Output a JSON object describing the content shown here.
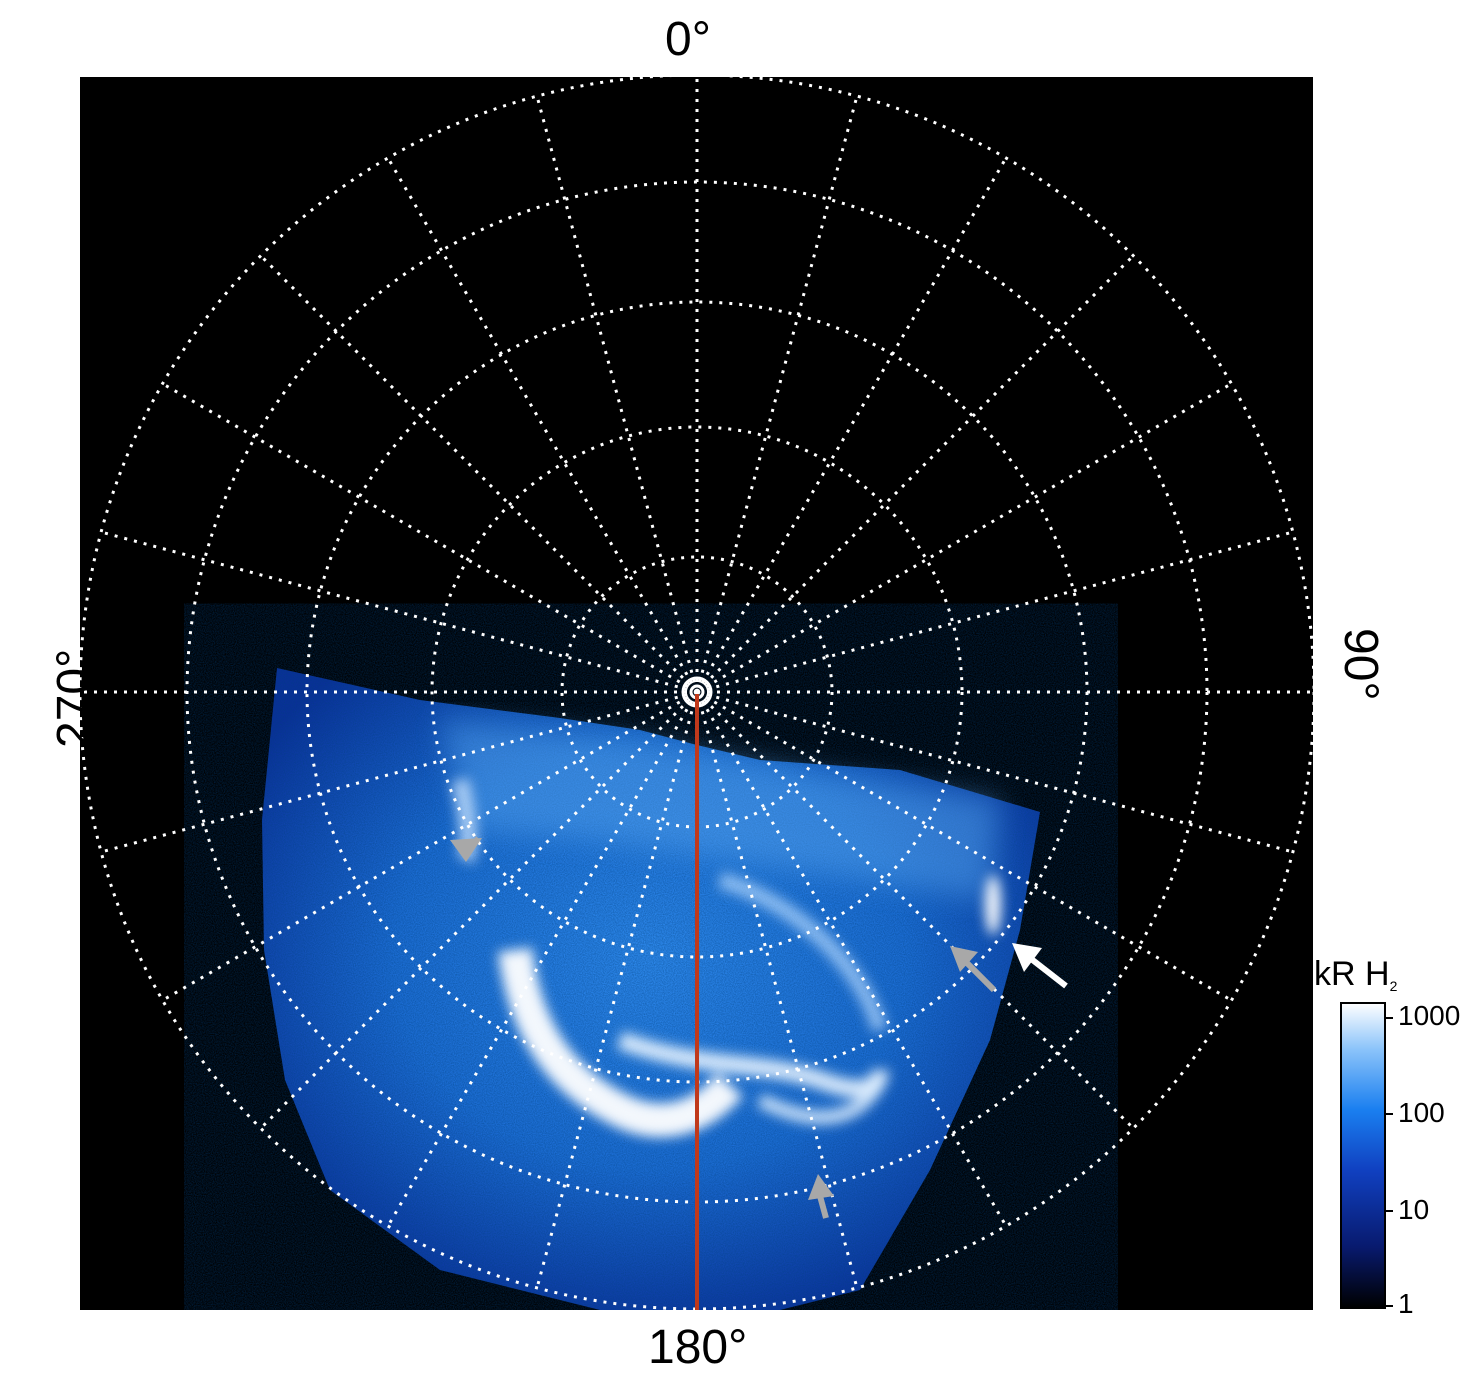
{
  "labels": {
    "top": "0°",
    "bottom": "180°",
    "left": "270°",
    "right": "90°"
  },
  "colorbar": {
    "title_main": "kR H",
    "title_sub": "2",
    "ticks": [
      "1000",
      "100",
      "10",
      "1"
    ]
  },
  "colors": {
    "background": "#000000",
    "grid": "#ffffff",
    "meridian_line": "#c0391b",
    "aurora_dim": "#0b2a8a",
    "aurora_mid": "#1e78e6",
    "aurora_bright": "#e8f4ff",
    "arrow_gray": "#a8a8a8",
    "arrow_white": "#ffffff"
  }
}
